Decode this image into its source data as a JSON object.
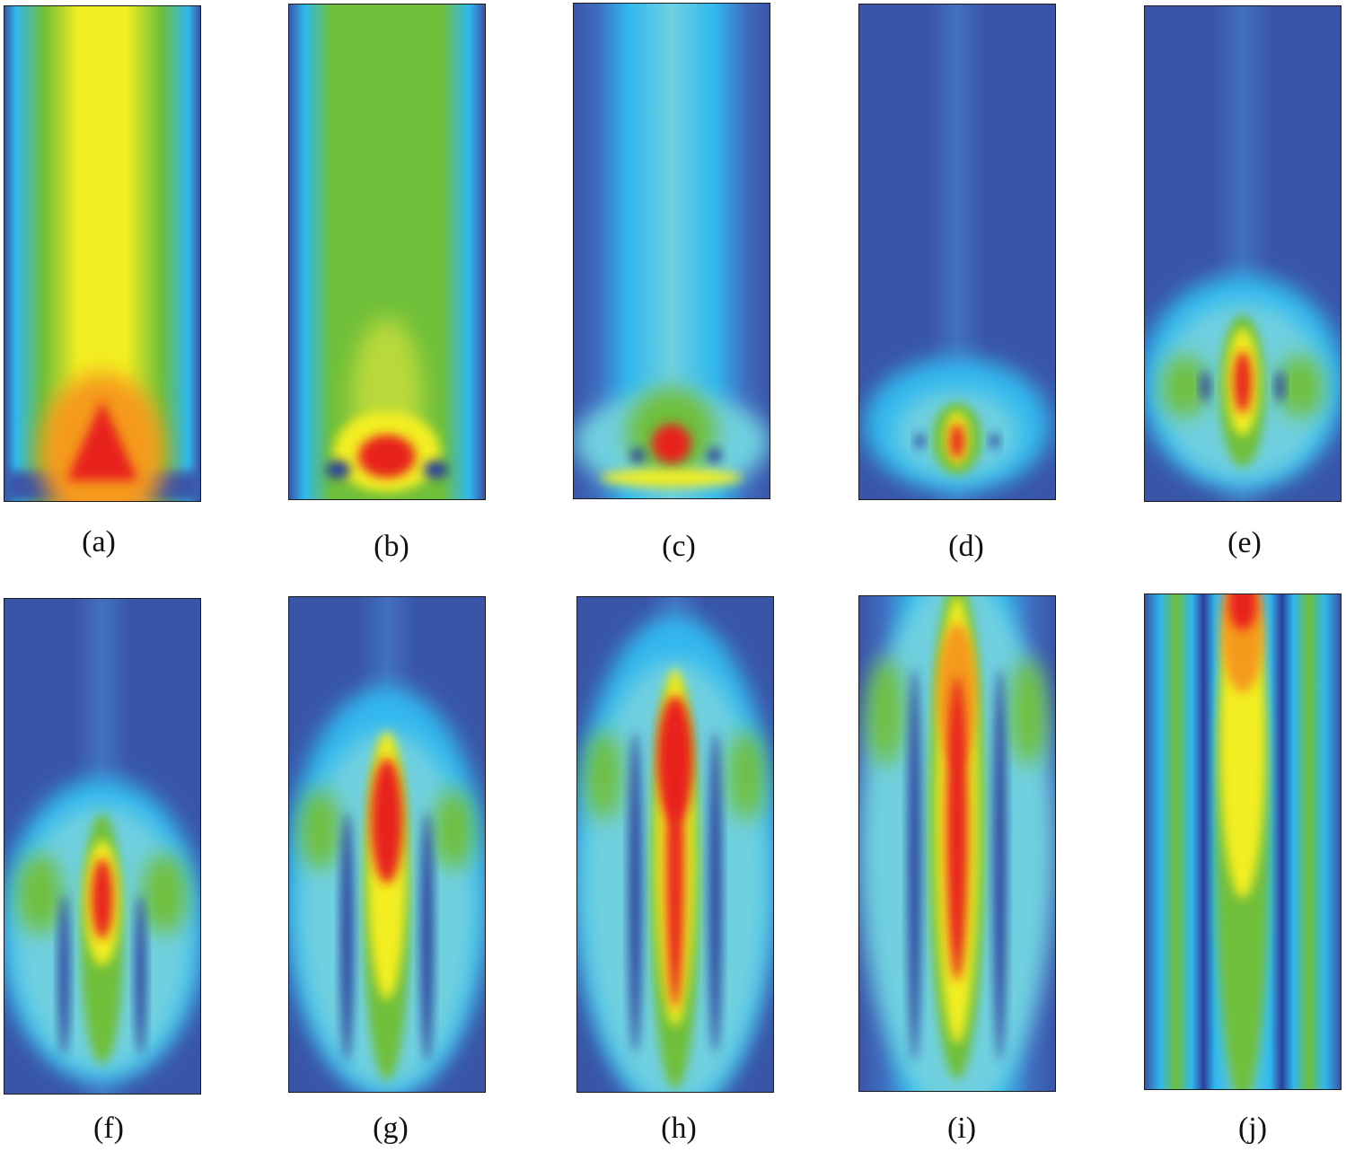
{
  "figure": {
    "palette": {
      "background": "#3a55a8",
      "deep_blue": "#2b3f9a",
      "blue": "#3f6cc0",
      "cyan": "#30b8ee",
      "light_cyan": "#6fd0e0",
      "green": "#6fbf3a",
      "yellow": "#f3ee22",
      "orange": "#f59a1c",
      "red": "#e8241c"
    },
    "panels": [
      {
        "label": "(a)"
      },
      {
        "label": "(b)"
      },
      {
        "label": "(c)"
      },
      {
        "label": "(d)"
      },
      {
        "label": "(e)"
      },
      {
        "label": "(f)"
      },
      {
        "label": "(g)"
      },
      {
        "label": "(h)"
      },
      {
        "label": "(i)"
      },
      {
        "label": "(j)"
      }
    ]
  }
}
